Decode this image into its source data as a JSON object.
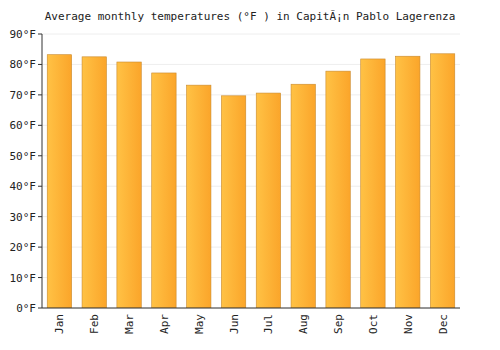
{
  "chart_data": {
    "type": "bar",
    "title": "Average monthly temperatures (°F ) in CapitÃ¡n Pablo Lagerenza",
    "categories": [
      "Jan",
      "Feb",
      "Mar",
      "Apr",
      "May",
      "Jun",
      "Jul",
      "Aug",
      "Sep",
      "Oct",
      "Nov",
      "Dec"
    ],
    "values": [
      83.2,
      82.5,
      80.8,
      77.2,
      73.2,
      69.7,
      70.6,
      73.5,
      77.8,
      81.8,
      82.7,
      83.5
    ],
    "color": "#fba52a",
    "ylim": [
      0,
      90
    ],
    "yticks": [
      {
        "value": 0,
        "label": "0°F"
      },
      {
        "value": 10,
        "label": "10°F"
      },
      {
        "value": 20,
        "label": "20°F"
      },
      {
        "value": 30,
        "label": "30°F"
      },
      {
        "value": 40,
        "label": "40°F"
      },
      {
        "value": 50,
        "label": "50°F"
      },
      {
        "value": 60,
        "label": "60°F"
      },
      {
        "value": 70,
        "label": "70°F"
      },
      {
        "value": 80,
        "label": "80°F"
      },
      {
        "value": 90,
        "label": "90°F"
      }
    ],
    "grid": true
  }
}
